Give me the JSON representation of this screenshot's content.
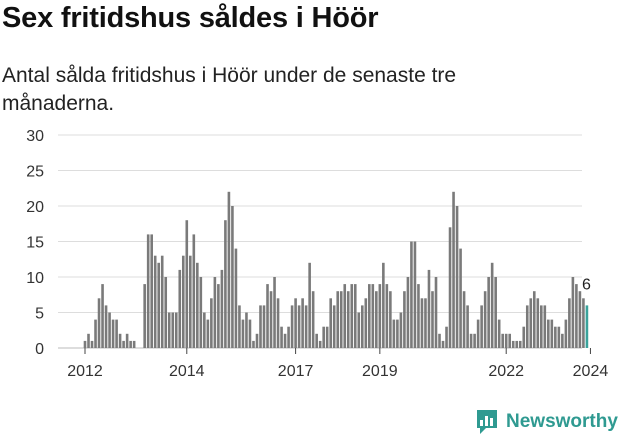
{
  "title": "Sex fritidshus såldes i Höör",
  "subtitle": "Antal sålda fritidshus i Höör under de senaste tre månaderna.",
  "brand": "Newsworthy",
  "colors": {
    "bar": "#7a7a7a",
    "highlight": "#3aa39b",
    "grid": "#dddddd",
    "axis": "#444444",
    "brand": "#2f9a91"
  },
  "chart_data": {
    "type": "bar",
    "title": "Sex fritidshus såldes i Höör",
    "subtitle": "Antal sålda fritidshus i Höör under de senaste tre månaderna.",
    "xlabel": "",
    "ylabel": "",
    "ylim": [
      0,
      30
    ],
    "yticks": [
      0,
      5,
      10,
      15,
      20,
      25,
      30
    ],
    "xticks": [
      "2012",
      "2014",
      "2017",
      "2019",
      "2022",
      "2024"
    ],
    "grid": true,
    "last_label": "6",
    "x_start": "2012-01",
    "frequency": "monthly",
    "values": [
      1,
      2,
      1,
      4,
      7,
      9,
      6,
      5,
      4,
      4,
      2,
      1,
      2,
      1,
      1,
      0,
      0,
      9,
      16,
      16,
      13,
      12,
      13,
      10,
      5,
      5,
      5,
      11,
      13,
      18,
      13,
      16,
      12,
      10,
      5,
      4,
      7,
      10,
      9,
      11,
      18,
      22,
      20,
      14,
      6,
      4,
      5,
      4,
      1,
      2,
      6,
      6,
      9,
      8,
      10,
      7,
      3,
      2,
      3,
      6,
      7,
      6,
      7,
      6,
      12,
      8,
      2,
      1,
      3,
      3,
      7,
      6,
      8,
      8,
      9,
      8,
      9,
      9,
      5,
      6,
      7,
      9,
      9,
      8,
      9,
      12,
      9,
      8,
      4,
      4,
      5,
      8,
      10,
      15,
      15,
      9,
      7,
      7,
      11,
      8,
      10,
      2,
      1,
      3,
      17,
      22,
      20,
      14,
      8,
      6,
      2,
      2,
      4,
      6,
      8,
      10,
      12,
      10,
      4,
      2,
      2,
      2,
      1,
      1,
      1,
      3,
      6,
      7,
      8,
      7,
      6,
      6,
      4,
      4,
      3,
      3,
      2,
      4,
      7,
      10,
      9,
      8,
      7,
      6
    ]
  }
}
